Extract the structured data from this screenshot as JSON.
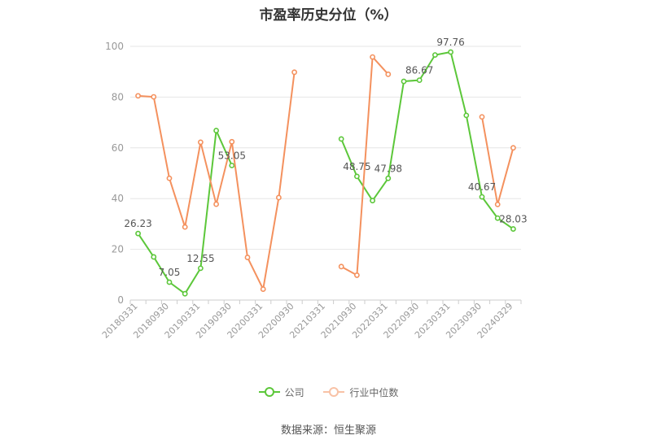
{
  "colors": {
    "company": "#5cc73a",
    "industry": "#f4915e",
    "grid": "#e6e6e6",
    "axis_text": "#999999",
    "label_text": "#555555"
  },
  "chart_data": {
    "type": "line",
    "title": "市盈率历史分位（%）",
    "xlabel": "",
    "ylabel": "",
    "ylim": [
      0,
      100
    ],
    "yticks": [
      0,
      20,
      40,
      60,
      80,
      100
    ],
    "grid": true,
    "legend_position": "bottom",
    "x": [
      "20180331",
      "20180630",
      "20180930",
      "20181231",
      "20190331",
      "20190630",
      "20190930",
      "20191231",
      "20200331",
      "20200630",
      "20200930",
      "20201231",
      "20210331",
      "20210630",
      "20210930",
      "20211231",
      "20220331",
      "20220630",
      "20220930",
      "20221231",
      "20230331",
      "20230630",
      "20230930",
      "20231231",
      "20240329"
    ],
    "xticks": [
      "20180331",
      "20180930",
      "20190331",
      "20190930",
      "20200331",
      "20200930",
      "20210331",
      "20210930",
      "20220331",
      "20220930",
      "20230331",
      "20230930",
      "20240329"
    ],
    "series": [
      {
        "name": "公司",
        "values": [
          26.23,
          17.0,
          7.05,
          2.5,
          12.55,
          66.8,
          53.05,
          null,
          null,
          null,
          null,
          null,
          null,
          63.5,
          48.75,
          39.2,
          47.98,
          86.2,
          86.67,
          96.6,
          97.76,
          72.8,
          40.67,
          32.3,
          28.03
        ],
        "labels": {
          "0": "26.23",
          "2": "7.05",
          "4": "12.55",
          "6": "53.05",
          "14": "48.75",
          "16": "47.98",
          "18": "86.67",
          "20": "97.76",
          "22": "40.67",
          "24": "28.03"
        }
      },
      {
        "name": "行业中位数",
        "values": [
          80.5,
          80.1,
          48.0,
          28.8,
          62.2,
          37.8,
          62.4,
          16.8,
          4.3,
          40.4,
          89.8,
          null,
          null,
          13.2,
          9.8,
          95.8,
          89.0,
          null,
          null,
          null,
          null,
          null,
          72.2,
          37.7,
          60.0
        ]
      }
    ]
  },
  "legend": [
    {
      "label": "公司",
      "color": "#5cc73a"
    },
    {
      "label": "行业中位数",
      "color": "#f4915e"
    }
  ],
  "source": "数据来源：恒生聚源"
}
